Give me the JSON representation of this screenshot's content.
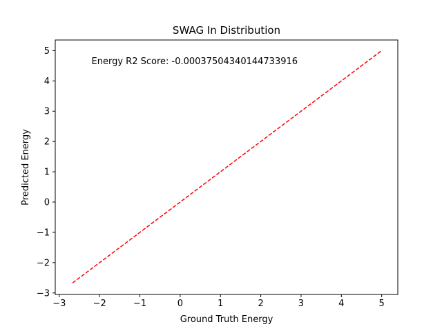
{
  "chart_data": {
    "type": "line",
    "title": "SWAG In Distribution",
    "xlabel": "Ground Truth Energy",
    "ylabel": "Predicted Energy",
    "xlim": [
      -3.1,
      5.4
    ],
    "ylim": [
      -3.05,
      5.35
    ],
    "xticks": [
      -3,
      -2,
      -1,
      0,
      1,
      2,
      3,
      4,
      5
    ],
    "yticks": [
      -3,
      -2,
      -1,
      0,
      1,
      2,
      3,
      4,
      5
    ],
    "xtick_labels": [
      "−3",
      "−2",
      "−1",
      "0",
      "1",
      "2",
      "3",
      "4",
      "5"
    ],
    "ytick_labels": [
      "−3",
      "−2",
      "−1",
      "0",
      "1",
      "2",
      "3",
      "4",
      "5"
    ],
    "grid": false,
    "series": [
      {
        "style": "dashed",
        "color": "#ff0000",
        "x": [
          -2.67,
          5.0
        ],
        "y": [
          -2.67,
          5.0
        ]
      }
    ],
    "annotations": [
      {
        "text": "Energy R2 Score: -0.00037504340144733916",
        "x": -2.2,
        "y": 4.55
      }
    ]
  }
}
